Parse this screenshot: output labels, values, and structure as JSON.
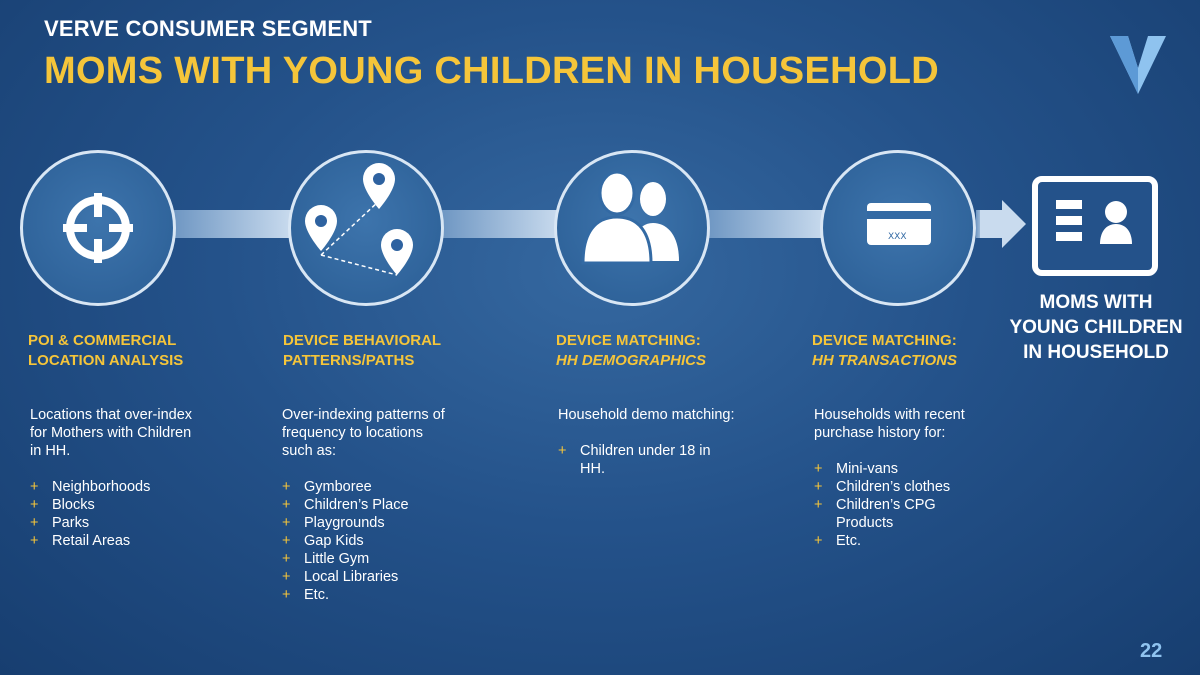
{
  "header": {
    "segment": "VERVE CONSUMER SEGMENT",
    "title": "MOMS WITH YOUNG CHILDREN IN HOUSEHOLD"
  },
  "steps": [
    {
      "icon": "crosshair-icon",
      "heading_line1": "POI & COMMERCIAL",
      "heading_line2": "LOCATION ANALYSIS",
      "body_lines": [
        "Locations that over-index",
        "for Mothers with Children",
        "in HH."
      ],
      "bullets": [
        "Neighborhoods",
        "Blocks",
        "Parks",
        "Retail Areas"
      ]
    },
    {
      "icon": "map-pins-path-icon",
      "heading_line1": "DEVICE BEHAVIORAL",
      "heading_line2": "PATTERNS/PATHS",
      "body_lines": [
        "Over-indexing patterns of",
        "frequency to locations",
        "such as:"
      ],
      "bullets": [
        "Gymboree",
        "Children’s Place",
        "Playgrounds",
        "Gap Kids",
        "Little Gym",
        "Local Libraries",
        "Etc."
      ]
    },
    {
      "icon": "people-icon",
      "heading_line1": "DEVICE MATCHING:",
      "heading_line2": "HH DEMOGRAPHICS",
      "body_lines": [
        "Household demo matching:"
      ],
      "bullets": [
        "Children under 18  in",
        "HH."
      ]
    },
    {
      "icon": "credit-card-icon",
      "heading_line1": "DEVICE MATCHING:",
      "heading_line2": "HH TRANSACTIONS",
      "body_lines": [
        "Households with recent",
        "purchase history for:"
      ],
      "bullets": [
        "Mini-vans",
        "Children’s clothes",
        "Children’s CPG",
        "Products",
        "Etc."
      ]
    }
  ],
  "card_text": "XXX",
  "result": {
    "icon": "id-card-icon",
    "label_line1": "MOMS WITH",
    "label_line2": "YOUNG CHILDREN",
    "label_line3": "IN HOUSEHOLD"
  },
  "page_number": "22",
  "colors": {
    "accent": "#f5c53a",
    "background": "#24528a",
    "page_number": "#8fc3ef"
  }
}
